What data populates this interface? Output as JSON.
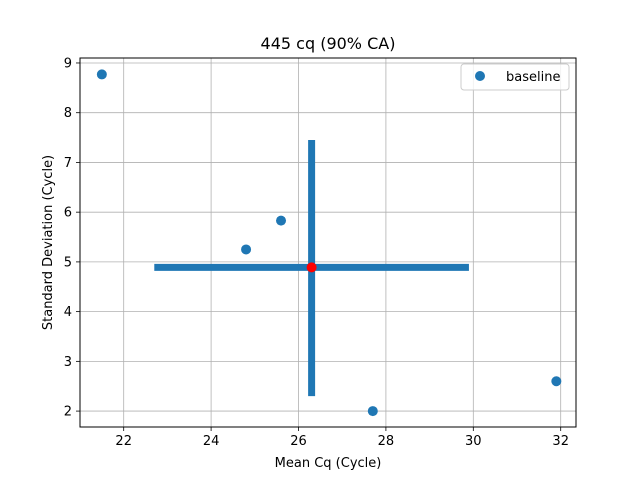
{
  "chart_data": {
    "type": "scatter",
    "title": "445 cq (90% CA)",
    "xlabel": "Mean Cq (Cycle)",
    "ylabel": "Standard Deviation (Cycle)",
    "xlim": [
      21.0,
      32.35
    ],
    "ylim": [
      1.68,
      9.1
    ],
    "xticks": [
      22,
      24,
      26,
      28,
      30,
      32
    ],
    "yticks": [
      2,
      3,
      4,
      5,
      6,
      7,
      8,
      9
    ],
    "grid": true,
    "legend_position": "top-right",
    "series": [
      {
        "name": "baseline",
        "color": "#1f77b4",
        "points": [
          {
            "x": 21.5,
            "y": 8.77
          },
          {
            "x": 24.8,
            "y": 5.25
          },
          {
            "x": 25.6,
            "y": 5.83
          },
          {
            "x": 27.7,
            "y": 2.0
          },
          {
            "x": 31.9,
            "y": 2.6
          }
        ]
      }
    ],
    "center": {
      "x": 26.3,
      "y": 4.89,
      "color": "#ff0000"
    },
    "error_bars": {
      "color": "#1f77b4",
      "x_range": [
        22.7,
        29.9
      ],
      "y_range": [
        2.3,
        7.45
      ]
    }
  }
}
